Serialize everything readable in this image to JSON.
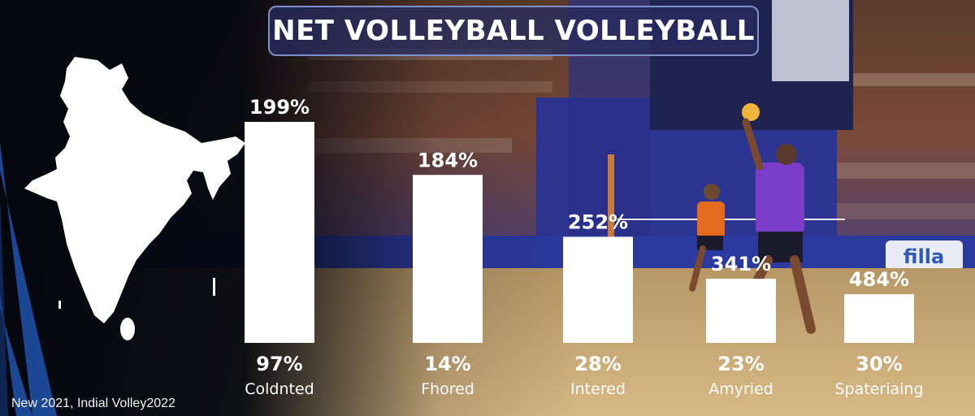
{
  "colors": {
    "bar": "#ffffff",
    "title_border": "#7f8fc9",
    "left_panel": "#0a0d1e",
    "stripe": "#1f4fa3",
    "court": "#c9a870",
    "stands": "#3a3f8f",
    "map": "#ffffff"
  },
  "icons": {
    "map": "india-map-icon",
    "player": "volleyball-player-image"
  },
  "footnote": "New 2021, Indial Volley2022",
  "chart_data": {
    "type": "bar",
    "title": "NET VOLLEYBALL VOLLEYBALL",
    "categories": [
      "Coldnted",
      "Fhored",
      "Intered",
      "Amyried",
      "Spateriaing"
    ],
    "bar_labels": [
      "199%",
      "184%",
      "252%",
      "341%",
      "484%"
    ],
    "values": [
      199,
      184,
      252,
      341,
      484
    ],
    "bar_fill_fraction": [
      1.0,
      0.76,
      0.48,
      0.29,
      0.22
    ],
    "sub_values": [
      "97%",
      "14%",
      "28%",
      "23%",
      "30%"
    ],
    "xlabel": "",
    "ylabel": "",
    "grid": false,
    "legend": "none"
  }
}
